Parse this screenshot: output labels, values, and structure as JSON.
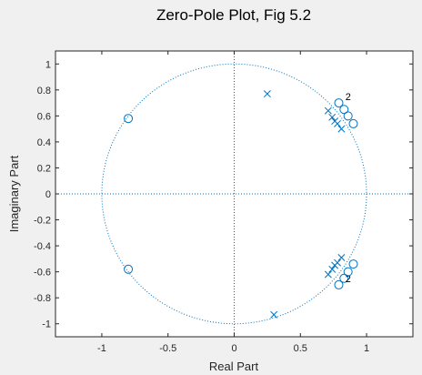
{
  "chart_data": {
    "type": "scatter",
    "title": "Zero-Pole Plot, Fig 5.2",
    "xlabel": "Real Part",
    "ylabel": "Imaginary Part",
    "xlim": [
      -1.35,
      1.35
    ],
    "ylim": [
      -1.1,
      1.1
    ],
    "xticks": [
      -1,
      -0.5,
      0,
      0.5,
      1
    ],
    "xtick_labels": [
      "-1",
      "-0.5",
      "0",
      "0.5",
      "1"
    ],
    "yticks": [
      1,
      0.8,
      0.6,
      0.4,
      0.2,
      0,
      -0.2,
      -0.4,
      -0.6,
      -0.8,
      -1
    ],
    "ytick_labels": [
      "1",
      "0.8",
      "0.6",
      "0.4",
      "0.2",
      "0",
      "-0.2",
      "-0.4",
      "-0.6",
      "-0.8",
      "-1"
    ],
    "grid": false,
    "unit_circle": true,
    "color": "#0072bd",
    "series": [
      {
        "marker": "circle",
        "points": [
          [
            -0.8,
            0.58
          ],
          [
            -0.8,
            -0.58
          ],
          [
            0.79,
            0.7
          ],
          [
            0.83,
            0.65
          ],
          [
            0.86,
            0.6
          ],
          [
            0.9,
            0.54
          ],
          [
            0.79,
            -0.7
          ],
          [
            0.83,
            -0.65
          ],
          [
            0.86,
            -0.6
          ],
          [
            0.9,
            -0.54
          ]
        ]
      },
      {
        "marker": "x",
        "points": [
          [
            0.25,
            0.77
          ],
          [
            0.3,
            -0.93
          ],
          [
            0.71,
            0.64
          ],
          [
            0.74,
            0.59
          ],
          [
            0.76,
            0.56
          ],
          [
            0.78,
            0.54
          ],
          [
            0.81,
            0.5
          ],
          [
            0.71,
            -0.62
          ],
          [
            0.74,
            -0.58
          ],
          [
            0.76,
            -0.55
          ],
          [
            0.78,
            -0.53
          ],
          [
            0.81,
            -0.49
          ]
        ]
      }
    ],
    "annotations": [
      {
        "text": "2",
        "x": 0.84,
        "y": 0.75
      },
      {
        "text": "2",
        "x": 0.84,
        "y": -0.65
      }
    ]
  }
}
